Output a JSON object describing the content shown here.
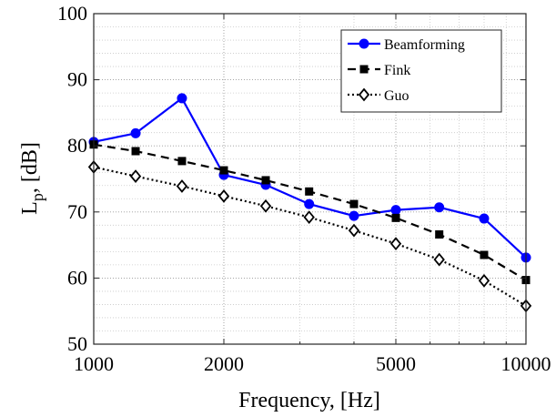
{
  "chart_data": {
    "type": "line",
    "xscale": "log",
    "xlim": [
      1000,
      10000
    ],
    "ylim": [
      50,
      100
    ],
    "xticks": [
      1000,
      2000,
      5000,
      10000
    ],
    "xtick_labels": [
      "1000",
      "2000",
      "5000",
      "10000"
    ],
    "yticks": [
      50,
      60,
      70,
      80,
      90,
      100
    ],
    "ytick_labels": [
      "50",
      "60",
      "70",
      "80",
      "90",
      "100"
    ],
    "xlabel": "Frequency, [Hz]",
    "ylabel_main": "L",
    "ylabel_sub": "p",
    "ylabel_rest": ", [dB]",
    "grid": true,
    "minor_grid": true,
    "legend_position": "top-right",
    "x": [
      1000,
      1250,
      1600,
      2000,
      2500,
      3150,
      4000,
      5000,
      6300,
      8000,
      10000
    ],
    "series": [
      {
        "name": "Beamforming",
        "color": "#0000ff",
        "marker": "circle",
        "linestyle": "solid",
        "values": [
          80.6,
          81.9,
          87.2,
          75.6,
          74.1,
          71.2,
          69.4,
          70.3,
          70.7,
          69.0,
          63.1
        ]
      },
      {
        "name": "Fink",
        "color": "#000000",
        "marker": "square",
        "linestyle": "dashed",
        "values": [
          80.2,
          79.2,
          77.7,
          76.3,
          74.8,
          73.1,
          71.2,
          69.1,
          66.6,
          63.5,
          59.7
        ]
      },
      {
        "name": "Guo",
        "color": "#000000",
        "marker": "diamond",
        "linestyle": "dotted",
        "values": [
          76.8,
          75.4,
          73.9,
          72.4,
          70.9,
          69.2,
          67.2,
          65.2,
          62.8,
          59.6,
          55.8
        ]
      }
    ]
  }
}
